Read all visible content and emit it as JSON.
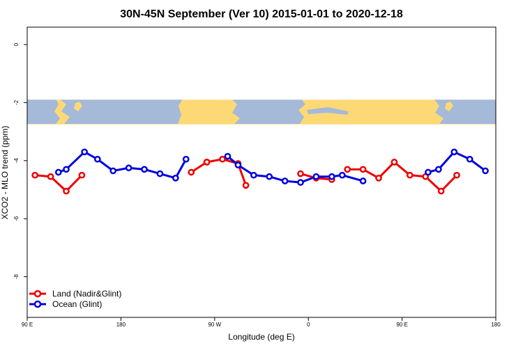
{
  "chart_data": {
    "type": "line",
    "title": "30N-45N September (Ver 10)   2015-01-01 to 2020-12-18",
    "xlabel": "Longitude (deg E)",
    "ylabel": "XCO2 - MLO trend (ppm)",
    "xlim": [
      90,
      540
    ],
    "ylim": [
      -9.4,
      0.6
    ],
    "x_ticks": [
      {
        "value": 90,
        "label": "90 E"
      },
      {
        "value": 180,
        "label": "180"
      },
      {
        "value": 270,
        "label": "90 W"
      },
      {
        "value": 360,
        "label": "0"
      },
      {
        "value": 450,
        "label": "90 E"
      },
      {
        "value": 540,
        "label": "180"
      }
    ],
    "y_ticks": [
      {
        "value": 0,
        "label": "0"
      },
      {
        "value": -2,
        "label": "-2"
      },
      {
        "value": -4,
        "label": "-4"
      },
      {
        "value": -6,
        "label": "-6"
      },
      {
        "value": -8,
        "label": "-8"
      }
    ],
    "map_band": {
      "y_top": -1.9,
      "y_bottom": -2.75,
      "ocean_color": "#a5b9d9",
      "land_color": "#fdd976"
    },
    "legend_position": "bottom-left",
    "series": [
      {
        "name": "Land (Nadir&Glint)",
        "color": "#ee0000",
        "segments": [
          [
            [
              97.5,
              -4.5
            ],
            [
              112.5,
              -4.55
            ],
            [
              127.5,
              -5.05
            ],
            [
              142.5,
              -4.5
            ]
          ],
          [
            [
              247.5,
              -4.4
            ],
            [
              262.5,
              -4.05
            ],
            [
              262.5,
              -4.05
            ],
            [
              277.5,
              -3.95
            ],
            [
              292.5,
              -4.1
            ],
            [
              300,
              -4.85
            ]
          ],
          [
            [
              352.5,
              -4.45
            ],
            [
              367.5,
              -4.6
            ],
            [
              382.5,
              -4.65
            ]
          ],
          [
            [
              397.5,
              -4.3
            ],
            [
              412.5,
              -4.3
            ],
            [
              427.5,
              -4.6
            ],
            [
              442.5,
              -4.05
            ],
            [
              457.5,
              -4.5
            ],
            [
              472.5,
              -4.55
            ],
            [
              487.5,
              -5.05
            ],
            [
              502.5,
              -4.5
            ]
          ]
        ]
      },
      {
        "name": "Ocean (Glint)",
        "color": "#0000dd",
        "segments": [
          [
            [
              120,
              -4.4
            ],
            [
              127.5,
              -4.3
            ],
            [
              145,
              -3.7
            ],
            [
              157.5,
              -3.95
            ],
            [
              172.5,
              -4.35
            ],
            [
              187.5,
              -4.25
            ],
            [
              202.5,
              -4.3
            ],
            [
              217.5,
              -4.45
            ],
            [
              232.5,
              -4.6
            ],
            [
              242.5,
              -3.95
            ]
          ],
          [
            [
              282.5,
              -3.85
            ],
            [
              292.5,
              -4.15
            ],
            [
              307.5,
              -4.5
            ],
            [
              322.5,
              -4.55
            ],
            [
              337.5,
              -4.7
            ],
            [
              352.5,
              -4.75
            ],
            [
              367.5,
              -4.55
            ],
            [
              382.5,
              -4.55
            ],
            [
              392.5,
              -4.5
            ],
            [
              412.5,
              -4.7
            ]
          ],
          [
            [
              475,
              -4.4
            ],
            [
              485,
              -4.3
            ],
            [
              500,
              -3.7
            ],
            [
              515,
              -3.95
            ],
            [
              530,
              -4.35
            ]
          ]
        ]
      }
    ]
  }
}
